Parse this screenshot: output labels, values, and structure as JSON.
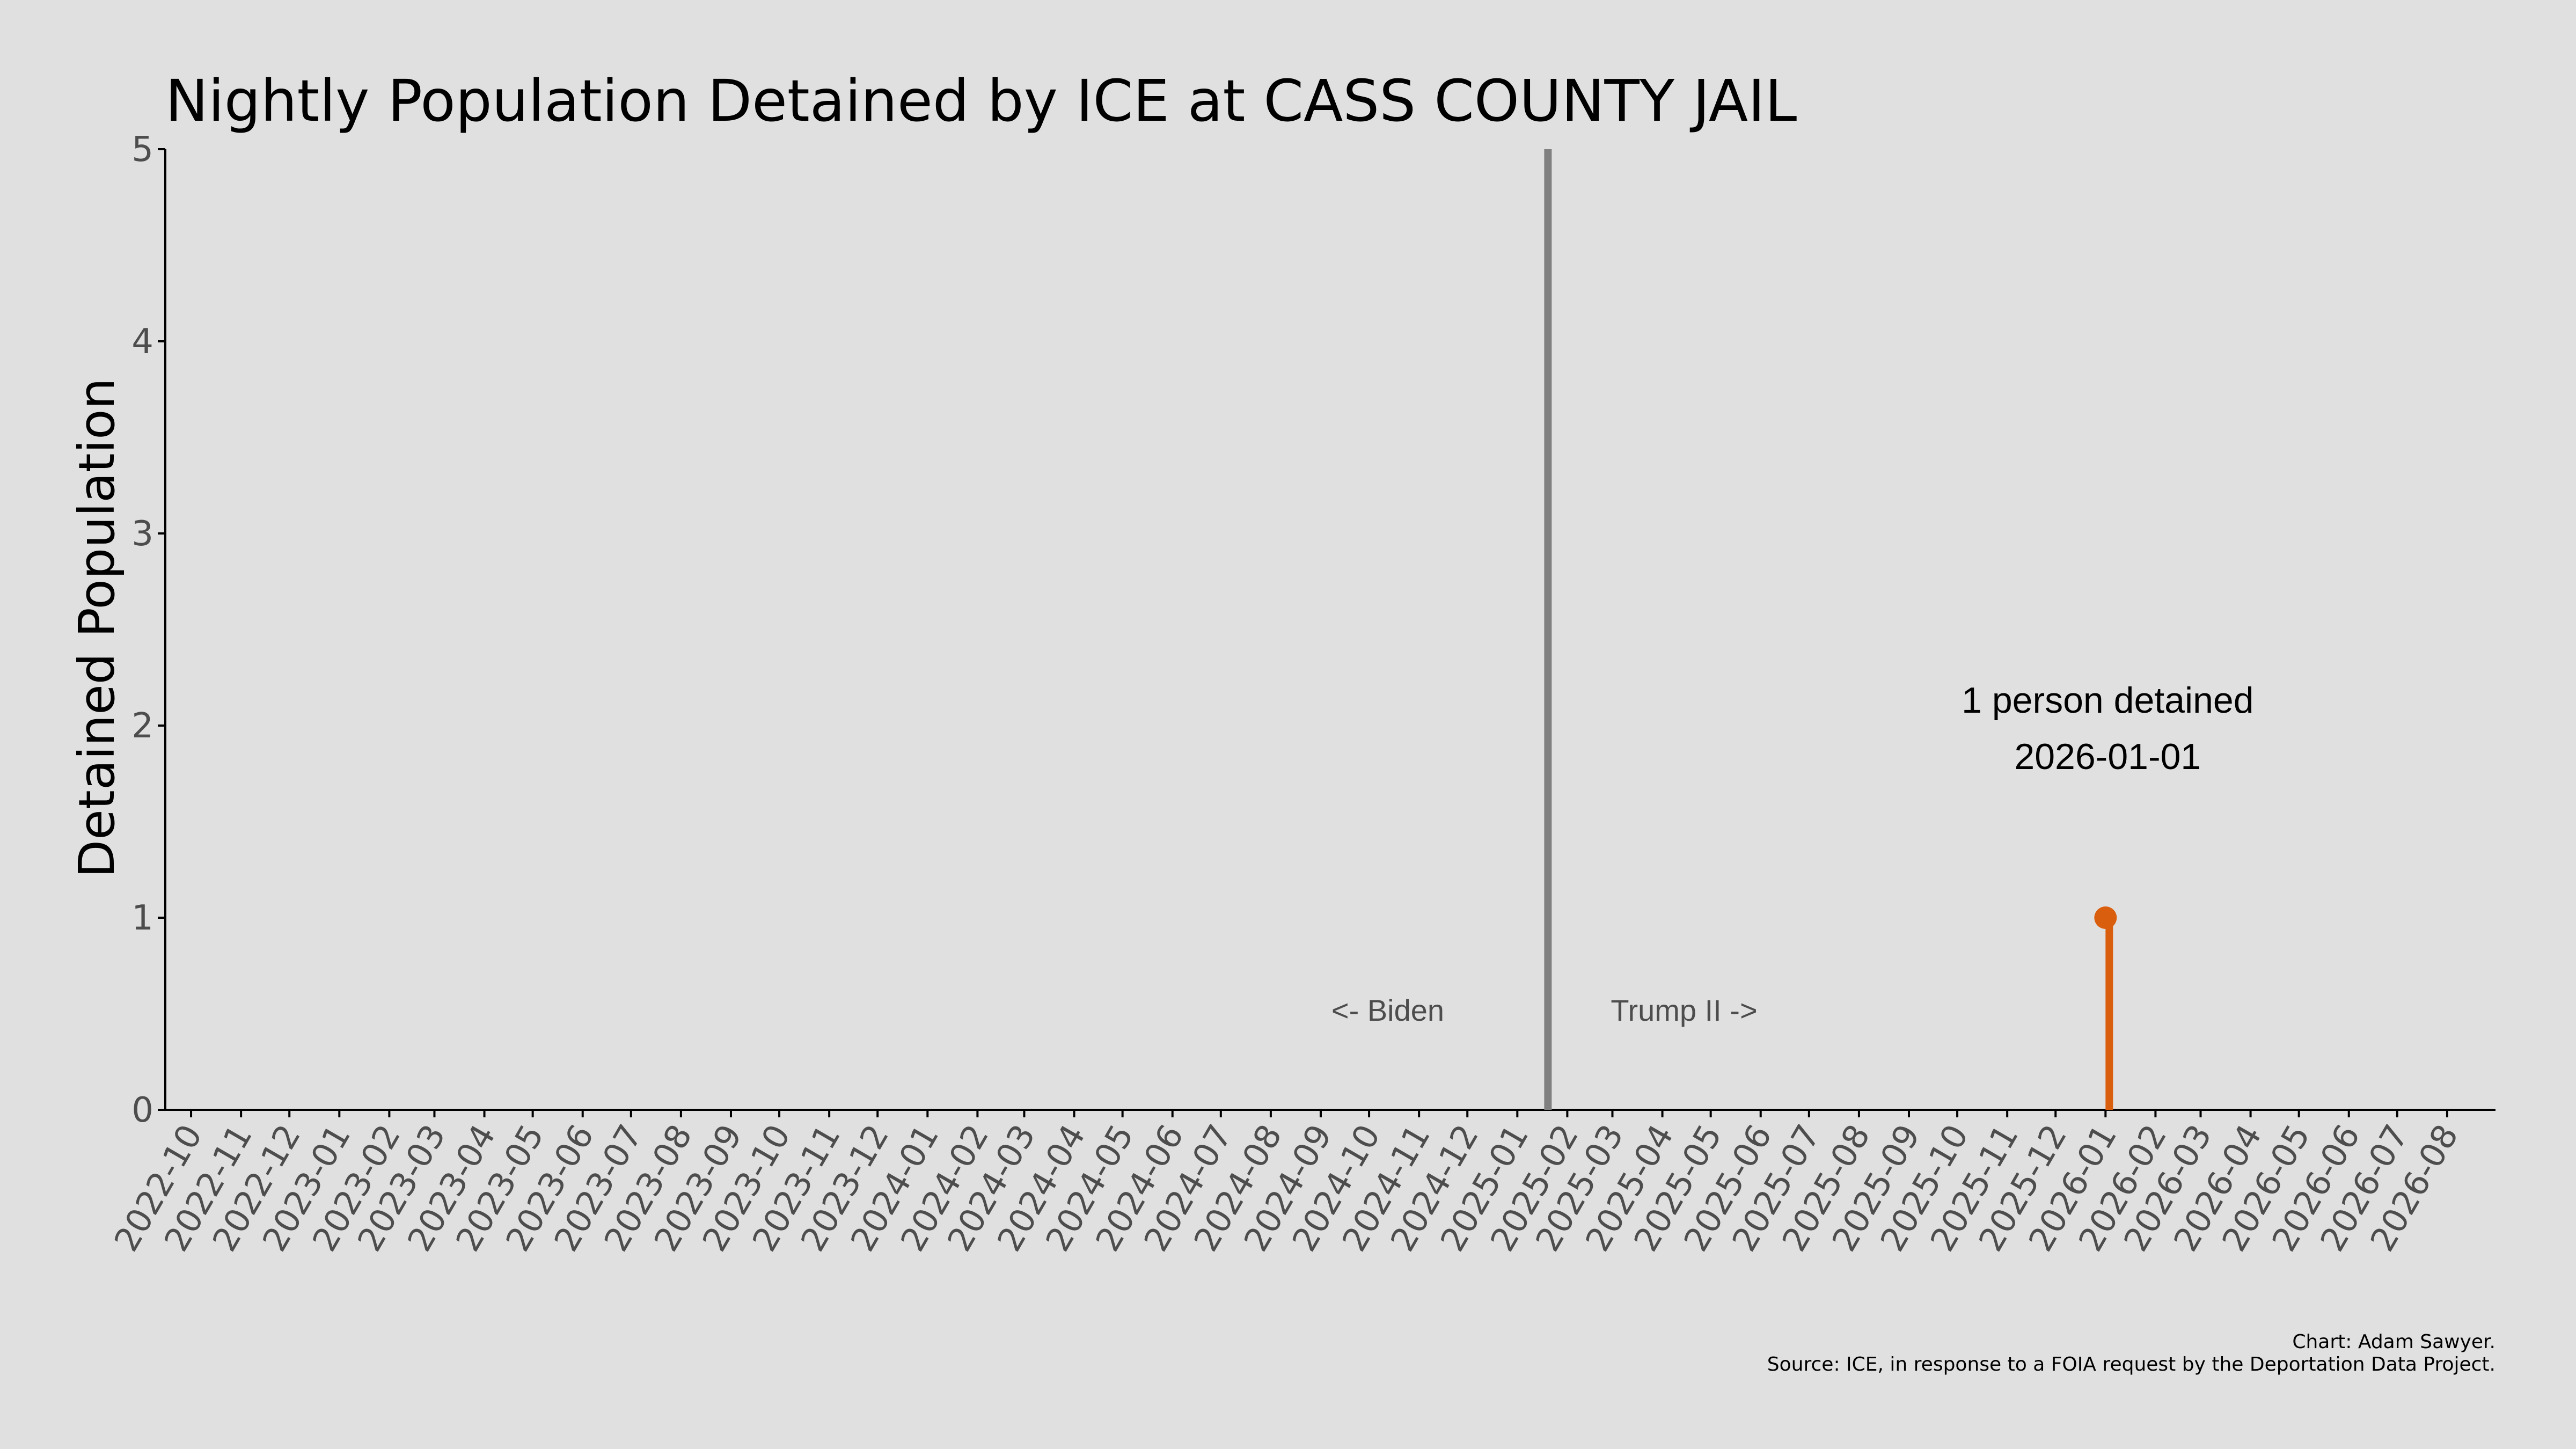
{
  "chart_data": {
    "type": "line",
    "title": "Nightly Population Detained by ICE at CASS COUNTY JAIL",
    "xlabel": "",
    "ylabel": "Detained Population",
    "ylim": [
      0,
      5
    ],
    "yticks": [
      "0",
      "1",
      "2",
      "3",
      "4",
      "5"
    ],
    "xlim": [
      "2022-09-15",
      "2026-08-31"
    ],
    "xticks": [
      "2022-10",
      "2022-11",
      "2022-12",
      "2023-01",
      "2023-02",
      "2023-03",
      "2023-04",
      "2023-05",
      "2023-06",
      "2023-07",
      "2023-08",
      "2023-09",
      "2023-10",
      "2023-11",
      "2023-12",
      "2024-01",
      "2024-02",
      "2024-03",
      "2024-04",
      "2024-05",
      "2024-06",
      "2024-07",
      "2024-08",
      "2024-09",
      "2024-10",
      "2024-11",
      "2024-12",
      "2025-01",
      "2025-02",
      "2025-03",
      "2025-04",
      "2025-05",
      "2025-06",
      "2025-07",
      "2025-08",
      "2025-09",
      "2025-10",
      "2025-11",
      "2025-12",
      "2026-01",
      "2026-02",
      "2026-03",
      "2026-04",
      "2026-05",
      "2026-06",
      "2026-07",
      "2026-08"
    ],
    "grid": false,
    "series": [
      {
        "color": "#d95f0e",
        "points": [
          {
            "x": "2026-01-01",
            "y": 1
          }
        ]
      }
    ],
    "divider": {
      "x": "2025-01-20",
      "color": "#808080"
    },
    "era_labels": {
      "left": "<- Biden",
      "right": "Trump II ->"
    },
    "annotation": {
      "line1": "1 person detained",
      "line2": "2026-01-01",
      "x": "2026-01-01",
      "y": 2
    },
    "credits": {
      "line1": "Chart: Adam Sawyer.",
      "line2": "Source: ICE, in response to a FOIA request by the Deportation Data Project."
    }
  }
}
